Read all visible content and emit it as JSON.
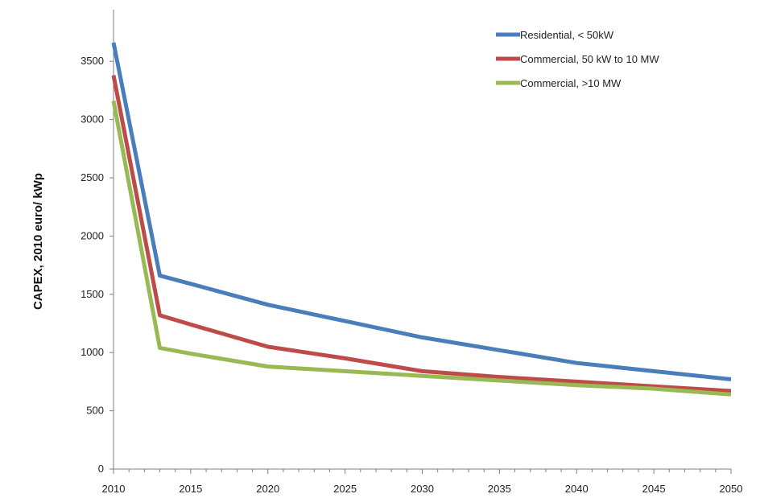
{
  "chart_data": {
    "type": "line",
    "title": "",
    "xlabel": "",
    "ylabel": "CAPEX, 2010 euro/ kWp",
    "xlim": [
      2010,
      2050
    ],
    "ylim": [
      0,
      3800
    ],
    "xticks": [
      2010,
      2015,
      2020,
      2025,
      2030,
      2035,
      2040,
      2045,
      2050
    ],
    "yticks": [
      0,
      500,
      1000,
      1500,
      2000,
      2500,
      3000,
      3500
    ],
    "x_minor_step": 1,
    "grid": false,
    "legend_position": "top-right",
    "series": [
      {
        "name": "Residential, < 50kW",
        "color": "#4a7ebb",
        "x": [
          2010,
          2013,
          2015,
          2020,
          2025,
          2030,
          2035,
          2040,
          2045,
          2050
        ],
        "values": [
          3660,
          1660,
          1590,
          1410,
          1270,
          1130,
          1020,
          910,
          840,
          770
        ]
      },
      {
        "name": "Commercial, 50 kW to 10 MW",
        "color": "#be4b48",
        "x": [
          2010,
          2013,
          2015,
          2020,
          2025,
          2030,
          2035,
          2040,
          2045,
          2050
        ],
        "values": [
          3380,
          1320,
          1240,
          1050,
          950,
          840,
          790,
          750,
          710,
          670
        ]
      },
      {
        "name": "Commercial, >10 MW",
        "color": "#98b954",
        "x": [
          2010,
          2013,
          2015,
          2020,
          2025,
          2030,
          2035,
          2040,
          2045,
          2050
        ],
        "values": [
          3160,
          1040,
          990,
          880,
          840,
          800,
          760,
          720,
          690,
          640
        ]
      }
    ]
  }
}
